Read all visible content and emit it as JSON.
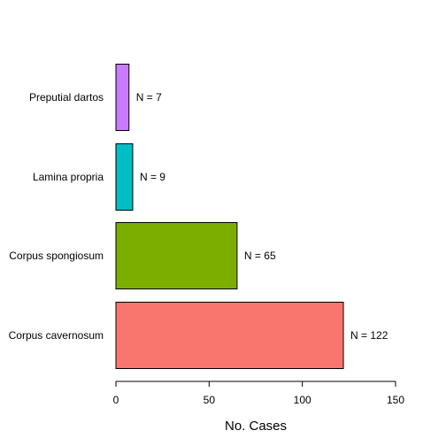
{
  "chart_data": {
    "type": "bar",
    "orientation": "horizontal",
    "title": "",
    "xlabel": "No. Cases",
    "ylabel": "",
    "xlim": [
      0,
      150
    ],
    "xticks": [
      0,
      50,
      100,
      150
    ],
    "grid": false,
    "legend": "none",
    "categories": [
      "Corpus cavernosum",
      "Corpus spongiosum",
      "Lamina propria",
      "Preputial dartos"
    ],
    "values": [
      122,
      65,
      9,
      7
    ],
    "value_labels": [
      "N = 122",
      "N = 65",
      "N = 9",
      "N = 7"
    ],
    "colors": [
      "#F8766D",
      "#7CAE00",
      "#00BFC4",
      "#C77CFF"
    ]
  }
}
